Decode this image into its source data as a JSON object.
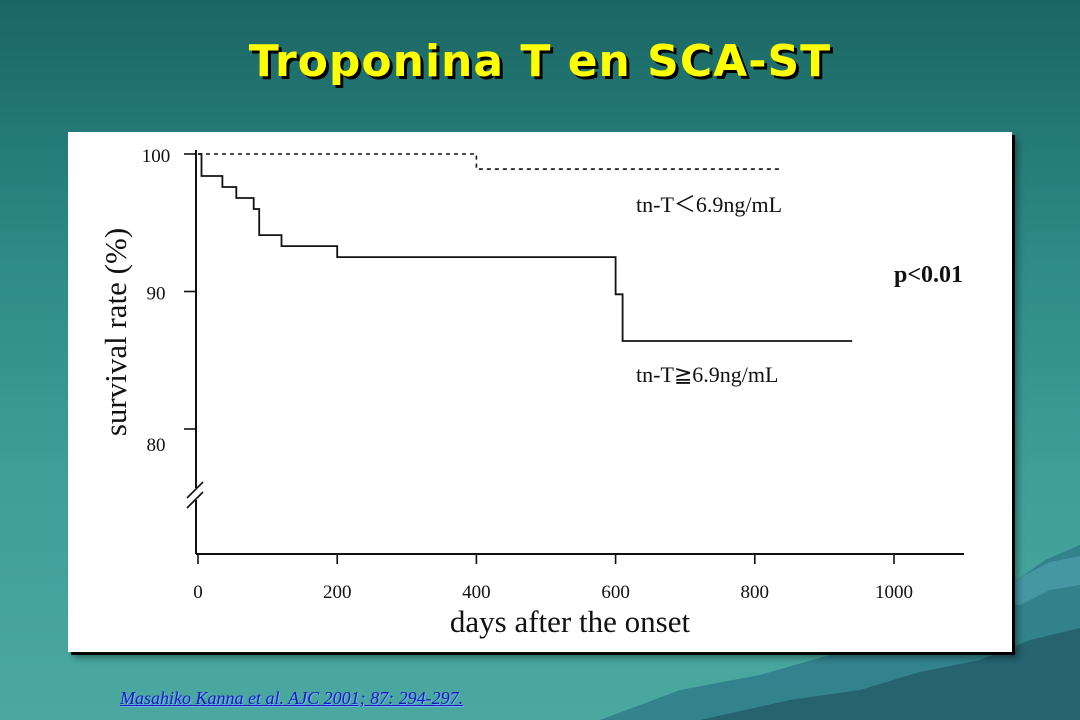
{
  "slide": {
    "title": "Troponina T en SCA-ST",
    "citation": "Masahiko Kanna et al. AJC 2001; 87: 294-297."
  },
  "colors": {
    "title": "#ffff00",
    "citation": "#1a1ab8",
    "background": "#2d8a86",
    "chart_ink": "#111111"
  },
  "chart_data": {
    "type": "line",
    "title": "",
    "xlabel": "days after the onset",
    "ylabel": "survival rate (%)",
    "xlim": [
      0,
      1100
    ],
    "ylim": [
      80,
      100
    ],
    "y_axis_break": true,
    "x_ticks": [
      0,
      200,
      400,
      600,
      800,
      1000
    ],
    "y_ticks": [
      80,
      90,
      100
    ],
    "grid": false,
    "annotation": "p<0.01",
    "series": [
      {
        "name": "tn-T＜6.9ng/mL",
        "step": true,
        "dash": "dotted",
        "points": [
          [
            0,
            100
          ],
          [
            400,
            100
          ],
          [
            400,
            98.9
          ],
          [
            840,
            98.9
          ]
        ]
      },
      {
        "name": "tn-T≧6.9ng/mL",
        "step": true,
        "dash": "solid",
        "points": [
          [
            0,
            100
          ],
          [
            5,
            100
          ],
          [
            5,
            98.4
          ],
          [
            35,
            98.4
          ],
          [
            35,
            97.6
          ],
          [
            55,
            97.6
          ],
          [
            55,
            96.8
          ],
          [
            80,
            96.8
          ],
          [
            80,
            96.0
          ],
          [
            88,
            96.0
          ],
          [
            88,
            94.1
          ],
          [
            120,
            94.1
          ],
          [
            120,
            93.3
          ],
          [
            200,
            93.3
          ],
          [
            200,
            92.5
          ],
          [
            600,
            92.5
          ],
          [
            600,
            89.8
          ],
          [
            610,
            89.8
          ],
          [
            610,
            86.4
          ],
          [
            940,
            86.4
          ]
        ]
      }
    ]
  }
}
